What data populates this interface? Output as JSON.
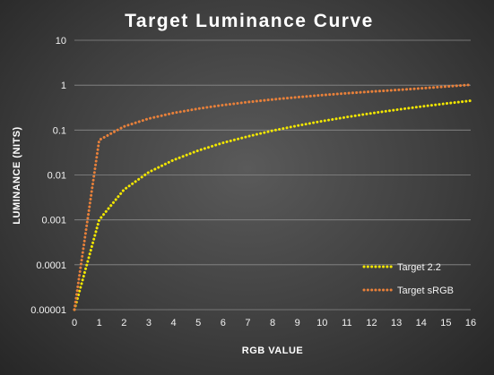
{
  "chart_data": {
    "type": "line",
    "title": "Target Luminance Curve",
    "xlabel": "RGB VALUE",
    "ylabel": "LUMINANCE (NITS)",
    "xlim": [
      0,
      16
    ],
    "ylim": [
      1e-05,
      10
    ],
    "y_scale": "log",
    "x_ticks": [
      "0",
      "1",
      "2",
      "3",
      "4",
      "5",
      "6",
      "7",
      "8",
      "9",
      "10",
      "11",
      "12",
      "13",
      "14",
      "15",
      "16"
    ],
    "y_ticks": [
      {
        "value": 1e-05,
        "label": "0.00001"
      },
      {
        "value": 0.0001,
        "label": "0.0001"
      },
      {
        "value": 0.001,
        "label": "0.001"
      },
      {
        "value": 0.01,
        "label": "0.01"
      },
      {
        "value": 0.1,
        "label": "0.1"
      },
      {
        "value": 1,
        "label": "1"
      },
      {
        "value": 10,
        "label": "10"
      }
    ],
    "grid": "horizontal",
    "legend": "bottom-right",
    "x": [
      0,
      1,
      2,
      3,
      4,
      5,
      6,
      7,
      8,
      9,
      10,
      11,
      12,
      13,
      14,
      15,
      16
    ],
    "series": [
      {
        "name": "Target 2.2",
        "color": "#f2e600",
        "values": [
          1e-05,
          0.001,
          0.0047,
          0.0115,
          0.0215,
          0.035,
          0.052,
          0.072,
          0.097,
          0.125,
          0.158,
          0.195,
          0.237,
          0.283,
          0.334,
          0.39,
          0.451
        ]
      },
      {
        "name": "Target sRGB",
        "color": "#e8803a",
        "values": [
          1e-05,
          0.06,
          0.12,
          0.18,
          0.24,
          0.3,
          0.36,
          0.42,
          0.48,
          0.54,
          0.6,
          0.66,
          0.72,
          0.78,
          0.85,
          0.93,
          1.02
        ]
      }
    ]
  }
}
